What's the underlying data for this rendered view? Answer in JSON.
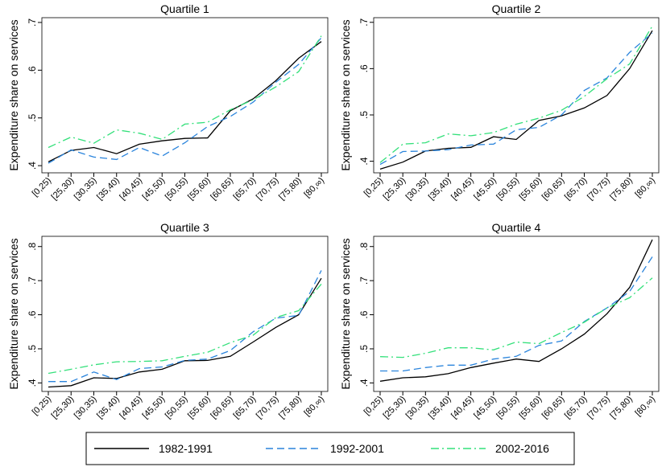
{
  "chart_data": [
    {
      "type": "line",
      "title": "Quartile 1",
      "y_label": "Expenditure share on services",
      "categories": [
        "[0,25)",
        "[25,30)",
        "[30,35)",
        "[35,40)",
        "[40,45)",
        "[45,50)",
        "[50,55)",
        "[55,60)",
        "[60,65)",
        "[65,70)",
        "[70,75)",
        "[75,80)",
        "[80,∞)"
      ],
      "ylim": [
        0.385,
        0.71
      ],
      "yticks": [
        {
          "value": 0.4,
          "label": ".4"
        },
        {
          "value": 0.5,
          "label": ".5"
        },
        {
          "value": 0.6,
          "label": ".6"
        },
        {
          "value": 0.7,
          "label": ".7"
        }
      ],
      "series": [
        {
          "name": "1982-1991",
          "color": "#000000",
          "values": [
            0.408,
            0.432,
            0.438,
            0.425,
            0.445,
            0.452,
            0.457,
            0.458,
            0.515,
            0.54,
            0.578,
            0.625,
            0.66
          ]
        },
        {
          "name": "1992-2001",
          "color": "#2a84dc",
          "values": [
            0.405,
            0.433,
            0.418,
            0.413,
            0.438,
            0.42,
            0.448,
            0.482,
            0.503,
            0.533,
            0.575,
            0.612,
            0.668
          ]
        },
        {
          "name": "2002-2016",
          "color": "#33e07a",
          "values": [
            0.438,
            0.46,
            0.447,
            0.475,
            0.468,
            0.455,
            0.487,
            0.491,
            0.517,
            0.538,
            0.565,
            0.597,
            0.672
          ]
        }
      ]
    },
    {
      "type": "line",
      "title": "Quartile 2",
      "y_label": "Expenditure share on services",
      "categories": [
        "[0,25)",
        "[25,30)",
        "[30,35)",
        "[35,40)",
        "[40,45)",
        "[45,50)",
        "[50,55)",
        "[55,60)",
        "[60,65)",
        "[65,70)",
        "[70,75)",
        "[75,80)",
        "[80,∞)"
      ],
      "ylim": [
        0.375,
        0.71
      ],
      "yticks": [
        {
          "value": 0.4,
          "label": ".4"
        },
        {
          "value": 0.5,
          "label": ".5"
        },
        {
          "value": 0.6,
          "label": ".6"
        },
        {
          "value": 0.7,
          "label": ".7"
        }
      ],
      "series": [
        {
          "color": "#000000",
          "values": [
            0.383,
            0.398,
            0.422,
            0.428,
            0.43,
            0.453,
            0.447,
            0.488,
            0.498,
            0.515,
            0.542,
            0.6,
            0.682
          ]
        },
        {
          "color": "#2a84dc",
          "values": [
            0.393,
            0.421,
            0.422,
            0.425,
            0.435,
            0.437,
            0.468,
            0.473,
            0.5,
            0.553,
            0.58,
            0.635,
            0.677
          ]
        },
        {
          "color": "#33e07a",
          "values": [
            0.397,
            0.437,
            0.44,
            0.459,
            0.455,
            0.462,
            0.48,
            0.493,
            0.51,
            0.54,
            0.578,
            0.61,
            0.692
          ]
        }
      ]
    },
    {
      "type": "line",
      "title": "Quartile 3",
      "y_label": "Expenditure share on services",
      "categories": [
        "[0,25)",
        "[25,30)",
        "[30,35)",
        "[35,40)",
        "[40,45)",
        "[45,50)",
        "[50,55)",
        "[55,60)",
        "[60,65)",
        "[65,70)",
        "[70,75)",
        "[75,80)",
        "[80,∞)"
      ],
      "ylim": [
        0.375,
        0.83
      ],
      "yticks": [
        {
          "value": 0.4,
          "label": ".4"
        },
        {
          "value": 0.5,
          "label": ".5"
        },
        {
          "value": 0.6,
          "label": ".6"
        },
        {
          "value": 0.7,
          "label": ".7"
        },
        {
          "value": 0.8,
          "label": ".8"
        }
      ],
      "series": [
        {
          "color": "#000000",
          "values": [
            0.388,
            0.392,
            0.415,
            0.413,
            0.432,
            0.44,
            0.465,
            0.466,
            0.478,
            0.52,
            0.563,
            0.6,
            0.707
          ]
        },
        {
          "color": "#2a84dc",
          "values": [
            0.404,
            0.404,
            0.432,
            0.41,
            0.442,
            0.447,
            0.466,
            0.47,
            0.495,
            0.55,
            0.59,
            0.598,
            0.73
          ]
        },
        {
          "color": "#33e07a",
          "values": [
            0.428,
            0.44,
            0.453,
            0.462,
            0.463,
            0.465,
            0.478,
            0.49,
            0.518,
            0.54,
            0.592,
            0.612,
            0.69
          ]
        }
      ]
    },
    {
      "type": "line",
      "title": "Quartile 4",
      "y_label": "Expenditure share on services",
      "categories": [
        "[0,25)",
        "[25,30)",
        "[30,35)",
        "[35,40)",
        "[40,45)",
        "[45,50)",
        "[50,55)",
        "[55,60)",
        "[60,65)",
        "[65,70)",
        "[70,75)",
        "[75,80)",
        "[80,∞)"
      ],
      "ylim": [
        0.375,
        0.83
      ],
      "yticks": [
        {
          "value": 0.4,
          "label": ".4"
        },
        {
          "value": 0.5,
          "label": ".5"
        },
        {
          "value": 0.6,
          "label": ".6"
        },
        {
          "value": 0.7,
          "label": ".7"
        },
        {
          "value": 0.8,
          "label": ".8"
        }
      ],
      "series": [
        {
          "color": "#000000",
          "values": [
            0.405,
            0.415,
            0.418,
            0.427,
            0.445,
            0.458,
            0.47,
            0.463,
            0.5,
            0.543,
            0.603,
            0.68,
            0.82
          ]
        },
        {
          "color": "#2a84dc",
          "values": [
            0.435,
            0.435,
            0.445,
            0.452,
            0.452,
            0.47,
            0.478,
            0.51,
            0.523,
            0.58,
            0.62,
            0.668,
            0.77
          ]
        },
        {
          "color": "#33e07a",
          "values": [
            0.477,
            0.475,
            0.487,
            0.503,
            0.503,
            0.497,
            0.52,
            0.515,
            0.548,
            0.578,
            0.62,
            0.65,
            0.708
          ]
        }
      ]
    }
  ]
}
